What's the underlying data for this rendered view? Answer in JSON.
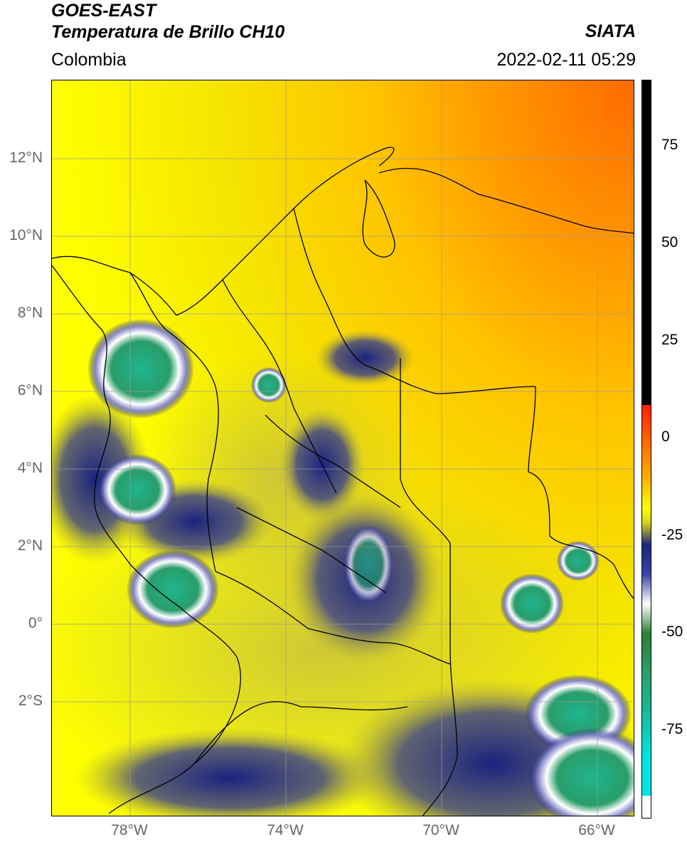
{
  "header": {
    "satellite": "GOES-EAST",
    "product": "Temperatura de Brillo CH10",
    "region": "Colombia",
    "organization": "SIATA",
    "datetime": "2022-02-11 05:29"
  },
  "map": {
    "lat_labels": [
      "12°N",
      "10°N",
      "8°N",
      "6°N",
      "4°N",
      "2°N",
      "0°",
      "2°S"
    ],
    "lon_labels": [
      "78°W",
      "74°W",
      "70°W",
      "66°W"
    ],
    "extent": {
      "lon_min": -80,
      "lon_max": -65,
      "lat_min": -5,
      "lat_max": 14
    }
  },
  "colorbar": {
    "tick_labels": [
      "75",
      "50",
      "25",
      "0",
      "-25",
      "-50",
      "-75"
    ],
    "range": [
      -95,
      90
    ],
    "colors": {
      "warm_top": "#000000",
      "red": "#ff2000",
      "orange": "#ff9a00",
      "yellow": "#ffff00",
      "olive": "#b8b23a",
      "navy": "#1a237e",
      "white": "#ffffff",
      "green": "#2e7d32",
      "teal": "#1fb58f",
      "cyan": "#00e5e5"
    }
  }
}
